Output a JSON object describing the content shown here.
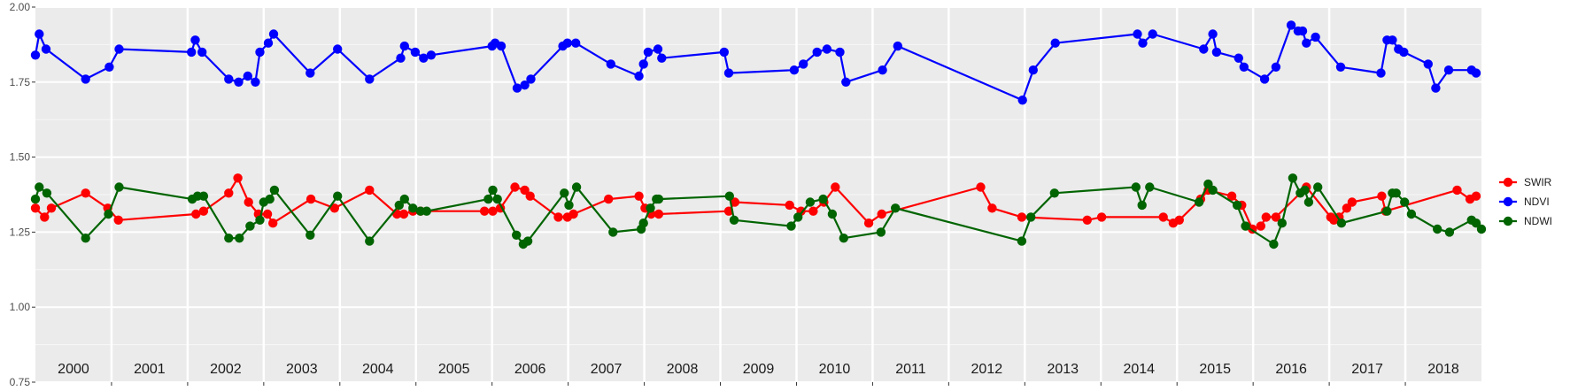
{
  "chart_data": {
    "type": "line",
    "title": "",
    "xlabel": "",
    "ylabel": "",
    "ylim": [
      0.75,
      2.0
    ],
    "xlim": [
      2000.0,
      2019.0
    ],
    "grid": true,
    "legend_position": "right",
    "y_ticks": [
      "0.75",
      "1.00",
      "1.25",
      "1.50",
      "1.75",
      "2.00"
    ],
    "year_labels": [
      "2000",
      "2001",
      "2002",
      "2003",
      "2004",
      "2005",
      "2006",
      "2007",
      "2008",
      "2009",
      "2010",
      "2011",
      "2012",
      "2013",
      "2014",
      "2015",
      "2016",
      "2017",
      "2018"
    ],
    "series": [
      {
        "name": "SWIR",
        "color": "#ff0000",
        "points": [
          [
            2000.0,
            1.33
          ],
          [
            2000.12,
            1.3
          ],
          [
            2000.21,
            1.33
          ],
          [
            2000.66,
            1.38
          ],
          [
            2000.95,
            1.33
          ],
          [
            2001.09,
            1.29
          ],
          [
            2002.11,
            1.31
          ],
          [
            2002.21,
            1.32
          ],
          [
            2002.54,
            1.38
          ],
          [
            2002.66,
            1.43
          ],
          [
            2002.8,
            1.35
          ],
          [
            2002.93,
            1.31
          ],
          [
            2003.05,
            1.31
          ],
          [
            2003.12,
            1.28
          ],
          [
            2003.62,
            1.36
          ],
          [
            2003.93,
            1.33
          ],
          [
            2004.39,
            1.39
          ],
          [
            2004.75,
            1.31
          ],
          [
            2004.84,
            1.31
          ],
          [
            2004.96,
            1.32
          ],
          [
            2005.06,
            1.32
          ],
          [
            2005.9,
            1.32
          ],
          [
            2006.01,
            1.32
          ],
          [
            2006.11,
            1.33
          ],
          [
            2006.3,
            1.4
          ],
          [
            2006.43,
            1.39
          ],
          [
            2006.5,
            1.37
          ],
          [
            2006.87,
            1.3
          ],
          [
            2006.99,
            1.3
          ],
          [
            2007.07,
            1.31
          ],
          [
            2007.53,
            1.36
          ],
          [
            2007.93,
            1.37
          ],
          [
            2008.01,
            1.33
          ],
          [
            2008.09,
            1.31
          ],
          [
            2008.19,
            1.31
          ],
          [
            2009.11,
            1.32
          ],
          [
            2009.19,
            1.35
          ],
          [
            2009.91,
            1.34
          ],
          [
            2010.06,
            1.32
          ],
          [
            2010.22,
            1.32
          ],
          [
            2010.36,
            1.35
          ],
          [
            2010.51,
            1.4
          ],
          [
            2010.95,
            1.28
          ],
          [
            2011.12,
            1.31
          ],
          [
            2012.42,
            1.4
          ],
          [
            2012.57,
            1.33
          ],
          [
            2012.96,
            1.3
          ],
          [
            2013.82,
            1.29
          ],
          [
            2014.01,
            1.3
          ],
          [
            2014.82,
            1.3
          ],
          [
            2014.95,
            1.28
          ],
          [
            2015.03,
            1.29
          ],
          [
            2015.31,
            1.36
          ],
          [
            2015.41,
            1.39
          ],
          [
            2015.72,
            1.37
          ],
          [
            2015.85,
            1.34
          ],
          [
            2015.99,
            1.26
          ],
          [
            2016.1,
            1.27
          ],
          [
            2016.17,
            1.3
          ],
          [
            2016.3,
            1.3
          ],
          [
            2016.7,
            1.4
          ],
          [
            2017.02,
            1.3
          ],
          [
            2017.06,
            1.29
          ],
          [
            2017.13,
            1.3
          ],
          [
            2017.23,
            1.33
          ],
          [
            2017.3,
            1.35
          ],
          [
            2017.69,
            1.37
          ],
          [
            2017.74,
            1.32
          ],
          [
            2018.68,
            1.39
          ],
          [
            2018.85,
            1.36
          ],
          [
            2018.93,
            1.37
          ]
        ]
      },
      {
        "name": "NDVI",
        "color": "#0000ff",
        "points": [
          [
            2000.0,
            1.84
          ],
          [
            2000.05,
            1.91
          ],
          [
            2000.14,
            1.86
          ],
          [
            2000.66,
            1.76
          ],
          [
            2000.97,
            1.8
          ],
          [
            2001.1,
            1.86
          ],
          [
            2002.05,
            1.85
          ],
          [
            2002.1,
            1.89
          ],
          [
            2002.19,
            1.85
          ],
          [
            2002.54,
            1.76
          ],
          [
            2002.67,
            1.75
          ],
          [
            2002.79,
            1.77
          ],
          [
            2002.89,
            1.75
          ],
          [
            2002.95,
            1.85
          ],
          [
            2003.06,
            1.88
          ],
          [
            2003.13,
            1.91
          ],
          [
            2003.61,
            1.78
          ],
          [
            2003.97,
            1.86
          ],
          [
            2004.39,
            1.76
          ],
          [
            2004.8,
            1.83
          ],
          [
            2004.85,
            1.87
          ],
          [
            2004.99,
            1.85
          ],
          [
            2005.1,
            1.83
          ],
          [
            2005.2,
            1.84
          ],
          [
            2006.0,
            1.87
          ],
          [
            2006.04,
            1.88
          ],
          [
            2006.12,
            1.87
          ],
          [
            2006.33,
            1.73
          ],
          [
            2006.43,
            1.74
          ],
          [
            2006.51,
            1.76
          ],
          [
            2006.93,
            1.87
          ],
          [
            2006.99,
            1.88
          ],
          [
            2007.1,
            1.88
          ],
          [
            2007.56,
            1.81
          ],
          [
            2007.93,
            1.77
          ],
          [
            2007.99,
            1.81
          ],
          [
            2008.05,
            1.85
          ],
          [
            2008.18,
            1.86
          ],
          [
            2008.23,
            1.83
          ],
          [
            2009.05,
            1.85
          ],
          [
            2009.11,
            1.78
          ],
          [
            2009.97,
            1.79
          ],
          [
            2010.09,
            1.81
          ],
          [
            2010.27,
            1.85
          ],
          [
            2010.4,
            1.86
          ],
          [
            2010.57,
            1.85
          ],
          [
            2010.65,
            1.75
          ],
          [
            2011.13,
            1.79
          ],
          [
            2011.33,
            1.87
          ],
          [
            2012.97,
            1.69
          ],
          [
            2013.11,
            1.79
          ],
          [
            2013.4,
            1.88
          ],
          [
            2014.48,
            1.91
          ],
          [
            2014.55,
            1.88
          ],
          [
            2014.68,
            1.91
          ],
          [
            2015.35,
            1.86
          ],
          [
            2015.47,
            1.91
          ],
          [
            2015.52,
            1.85
          ],
          [
            2015.81,
            1.83
          ],
          [
            2015.88,
            1.8
          ],
          [
            2016.15,
            1.76
          ],
          [
            2016.3,
            1.8
          ],
          [
            2016.5,
            1.94
          ],
          [
            2016.59,
            1.92
          ],
          [
            2016.65,
            1.92
          ],
          [
            2016.7,
            1.88
          ],
          [
            2016.82,
            1.9
          ],
          [
            2017.15,
            1.8
          ],
          [
            2017.68,
            1.78
          ],
          [
            2017.76,
            1.89
          ],
          [
            2017.83,
            1.89
          ],
          [
            2017.91,
            1.86
          ],
          [
            2017.98,
            1.85
          ],
          [
            2018.3,
            1.81
          ],
          [
            2018.4,
            1.73
          ],
          [
            2018.57,
            1.79
          ],
          [
            2018.87,
            1.79
          ],
          [
            2018.93,
            1.78
          ]
        ]
      },
      {
        "name": "NDWI",
        "color": "#006400",
        "points": [
          [
            2000.0,
            1.36
          ],
          [
            2000.05,
            1.4
          ],
          [
            2000.15,
            1.38
          ],
          [
            2000.66,
            1.23
          ],
          [
            2000.96,
            1.31
          ],
          [
            2001.1,
            1.4
          ],
          [
            2002.06,
            1.36
          ],
          [
            2002.13,
            1.37
          ],
          [
            2002.21,
            1.37
          ],
          [
            2002.54,
            1.23
          ],
          [
            2002.68,
            1.23
          ],
          [
            2002.82,
            1.27
          ],
          [
            2002.95,
            1.29
          ],
          [
            2003.0,
            1.35
          ],
          [
            2003.08,
            1.36
          ],
          [
            2003.14,
            1.39
          ],
          [
            2003.61,
            1.24
          ],
          [
            2003.97,
            1.37
          ],
          [
            2004.39,
            1.22
          ],
          [
            2004.78,
            1.34
          ],
          [
            2004.85,
            1.36
          ],
          [
            2004.96,
            1.33
          ],
          [
            2005.06,
            1.32
          ],
          [
            2005.14,
            1.32
          ],
          [
            2005.95,
            1.36
          ],
          [
            2006.01,
            1.39
          ],
          [
            2006.07,
            1.36
          ],
          [
            2006.32,
            1.24
          ],
          [
            2006.41,
            1.21
          ],
          [
            2006.47,
            1.22
          ],
          [
            2006.95,
            1.38
          ],
          [
            2007.01,
            1.34
          ],
          [
            2007.11,
            1.4
          ],
          [
            2007.59,
            1.25
          ],
          [
            2007.96,
            1.26
          ],
          [
            2007.99,
            1.28
          ],
          [
            2008.08,
            1.33
          ],
          [
            2008.16,
            1.36
          ],
          [
            2008.19,
            1.36
          ],
          [
            2009.12,
            1.37
          ],
          [
            2009.18,
            1.29
          ],
          [
            2009.93,
            1.27
          ],
          [
            2010.02,
            1.3
          ],
          [
            2010.18,
            1.35
          ],
          [
            2010.35,
            1.36
          ],
          [
            2010.47,
            1.31
          ],
          [
            2010.62,
            1.23
          ],
          [
            2011.11,
            1.25
          ],
          [
            2011.3,
            1.33
          ],
          [
            2012.96,
            1.22
          ],
          [
            2013.08,
            1.3
          ],
          [
            2013.39,
            1.38
          ],
          [
            2014.46,
            1.4
          ],
          [
            2014.54,
            1.34
          ],
          [
            2014.64,
            1.4
          ],
          [
            2015.29,
            1.35
          ],
          [
            2015.41,
            1.41
          ],
          [
            2015.47,
            1.39
          ],
          [
            2015.79,
            1.34
          ],
          [
            2015.9,
            1.27
          ],
          [
            2016.27,
            1.21
          ],
          [
            2016.38,
            1.28
          ],
          [
            2016.52,
            1.43
          ],
          [
            2016.62,
            1.38
          ],
          [
            2016.68,
            1.39
          ],
          [
            2016.73,
            1.35
          ],
          [
            2016.85,
            1.4
          ],
          [
            2017.16,
            1.28
          ],
          [
            2017.76,
            1.32
          ],
          [
            2017.83,
            1.38
          ],
          [
            2017.88,
            1.38
          ],
          [
            2017.99,
            1.35
          ],
          [
            2018.08,
            1.31
          ],
          [
            2018.42,
            1.26
          ],
          [
            2018.58,
            1.25
          ],
          [
            2018.87,
            1.29
          ],
          [
            2018.93,
            1.28
          ],
          [
            2019.0,
            1.26
          ]
        ]
      }
    ]
  }
}
